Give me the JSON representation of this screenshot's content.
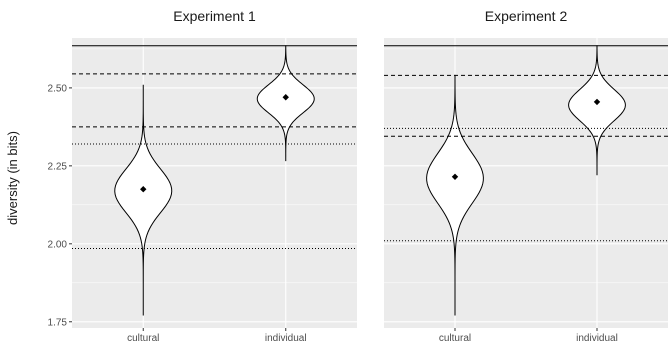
{
  "chart_data": {
    "type": "violin",
    "ylabel": "diversity (in bits)",
    "ylim": [
      1.73,
      2.66
    ],
    "y_ticks": [
      "1.75",
      "2.00",
      "2.25",
      "2.50"
    ],
    "y_tick_values": [
      1.75,
      2.0,
      2.25,
      2.5
    ],
    "categories": [
      "cultural",
      "individual"
    ],
    "panels": [
      {
        "title": "Experiment 1",
        "violins": [
          {
            "category": "cultural",
            "min": 1.77,
            "max": 2.51,
            "peak": 2.17,
            "spread": 0.07,
            "mean": 2.175
          },
          {
            "category": "individual",
            "min": 2.265,
            "max": 2.635,
            "peak": 2.465,
            "spread": 0.045,
            "mean": 2.47
          }
        ],
        "reference_lines": [
          {
            "y": 2.635,
            "style": "solid"
          },
          {
            "y": 2.545,
            "style": "dashed"
          },
          {
            "y": 2.375,
            "style": "dashed"
          },
          {
            "y": 2.32,
            "style": "dotted"
          },
          {
            "y": 1.985,
            "style": "dotted"
          }
        ]
      },
      {
        "title": "Experiment 2",
        "violins": [
          {
            "category": "cultural",
            "min": 1.77,
            "max": 2.54,
            "peak": 2.21,
            "spread": 0.08,
            "mean": 2.215
          },
          {
            "category": "individual",
            "min": 2.22,
            "max": 2.635,
            "peak": 2.445,
            "spread": 0.05,
            "mean": 2.455
          }
        ],
        "reference_lines": [
          {
            "y": 2.635,
            "style": "solid"
          },
          {
            "y": 2.54,
            "style": "dashed"
          },
          {
            "y": 2.37,
            "style": "dotted"
          },
          {
            "y": 2.345,
            "style": "dashed"
          },
          {
            "y": 2.01,
            "style": "dotted"
          }
        ]
      }
    ]
  }
}
